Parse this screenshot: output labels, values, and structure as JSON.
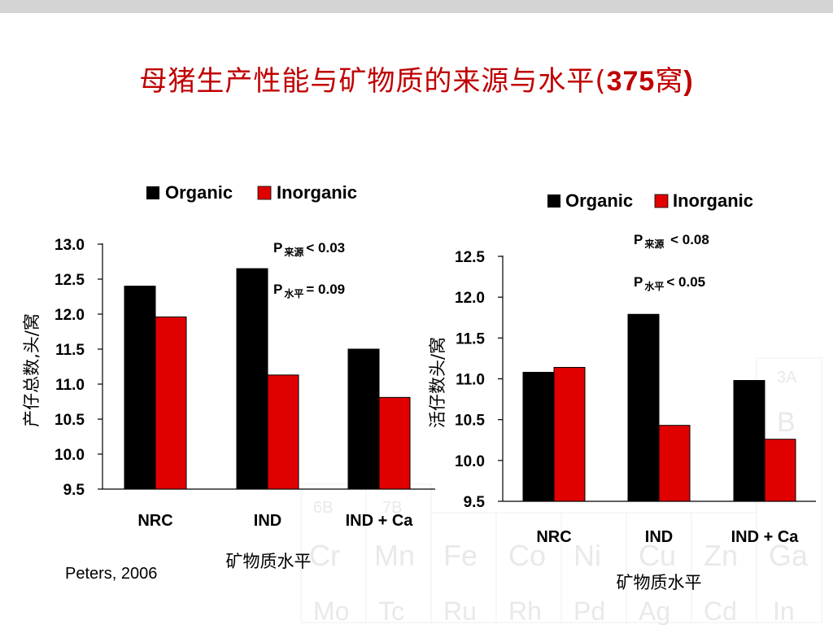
{
  "slide": {
    "title_text": "母猪生产性能与矿物质的来源与水平(",
    "title_num": "375",
    "title_unit": "窝",
    "title_close": ")",
    "citation": "Peters, 2006"
  },
  "colors": {
    "organic": "#000000",
    "inorganic": "#e00000",
    "title": "#c00000"
  },
  "chart_data": [
    {
      "type": "bar",
      "categories": [
        "NRC",
        "IND",
        "IND + Ca"
      ],
      "series": [
        {
          "name": "Organic",
          "values": [
            12.4,
            12.65,
            11.5
          ]
        },
        {
          "name": "Inorganic",
          "values": [
            11.96,
            11.13,
            10.81
          ]
        }
      ],
      "ylabel": "产仔总数,头/窝",
      "xlabel": "矿物质水平",
      "ylim": [
        9.5,
        13.0
      ],
      "yticks": [
        "13.0",
        "12.5",
        "12.0",
        "11.5",
        "11.0",
        "10.5",
        "10.0",
        "9.5"
      ],
      "legend_position": "top",
      "annotations": [
        {
          "p": "P",
          "sub": "来源",
          "rest": "< 0.03"
        },
        {
          "p": "P",
          "sub": "水平",
          "rest": "= 0.09"
        }
      ]
    },
    {
      "type": "bar",
      "categories": [
        "NRC",
        "IND",
        "IND + Ca"
      ],
      "series": [
        {
          "name": "Organic",
          "values": [
            11.08,
            11.79,
            10.98
          ]
        },
        {
          "name": "Inorganic",
          "values": [
            11.14,
            10.43,
            10.26
          ]
        }
      ],
      "ylabel": "活仔数头/窝",
      "xlabel": "矿物质水平",
      "ylim": [
        9.5,
        12.5
      ],
      "yticks": [
        "12.5",
        "12.0",
        "11.5",
        "11.0",
        "10.5",
        "10.0",
        "9.5"
      ],
      "legend_position": "top",
      "annotations": [
        {
          "p": "P",
          "sub": "来源",
          "rest": " < 0.08"
        },
        {
          "p": "P",
          "sub": "水平",
          "rest": "< 0.05"
        }
      ]
    }
  ]
}
